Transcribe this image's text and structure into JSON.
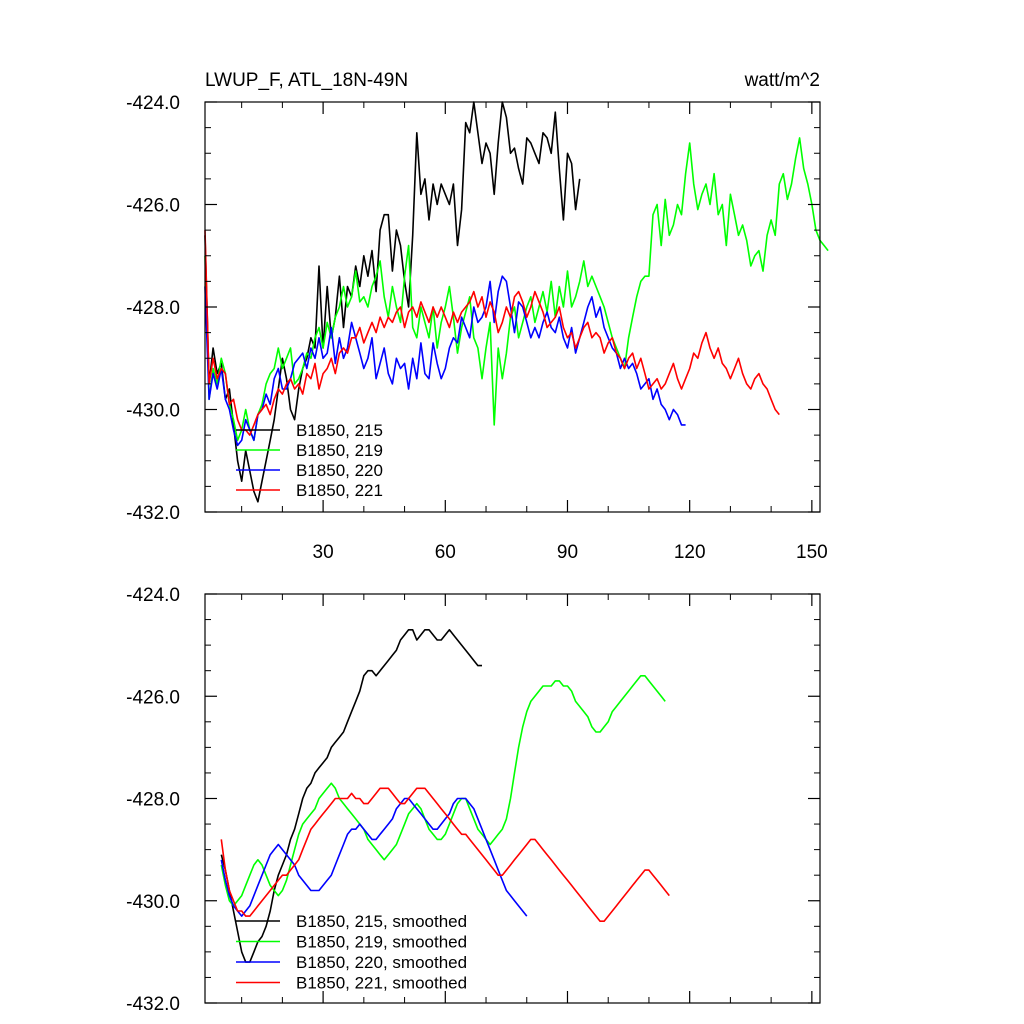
{
  "title_left": "LWUP_F, ATL_18N-49N",
  "title_right": "watt/m^2",
  "chart_data": [
    {
      "type": "line",
      "panel": "top",
      "xlim": [
        1,
        152
      ],
      "ylim": [
        -432,
        -424
      ],
      "yticks": [
        -424,
        -426,
        -428,
        -430,
        -432
      ],
      "ytick_labels": [
        "-424.0",
        "-426.0",
        "-428.0",
        "-430.0",
        "-432.0"
      ],
      "xticks": [
        30,
        60,
        90,
        120,
        150
      ],
      "xtick_labels": [
        "30",
        "60",
        "90",
        "120",
        "150"
      ],
      "legend_position": "bottom-left",
      "series": [
        {
          "name": "B1850, 215",
          "color": "#000000",
          "x_start": 1,
          "values": [
            -426.6,
            -429.5,
            -428.8,
            -429.3,
            -429.1,
            -429.8,
            -429.6,
            -430.3,
            -431.0,
            -431.4,
            -430.8,
            -431.2,
            -431.6,
            -431.8,
            -431.4,
            -431.0,
            -430.6,
            -430.2,
            -429.6,
            -429.0,
            -429.4,
            -430.0,
            -430.2,
            -429.6,
            -429.2,
            -429.0,
            -428.6,
            -428.8,
            -427.2,
            -428.8,
            -427.6,
            -428.6,
            -428.2,
            -427.4,
            -428.4,
            -427.6,
            -427.8,
            -427.2,
            -427.6,
            -427.0,
            -427.4,
            -426.9,
            -427.7,
            -426.5,
            -426.2,
            -426.2,
            -427.3,
            -426.5,
            -426.8,
            -427.5,
            -428.0,
            -426.6,
            -424.6,
            -425.8,
            -425.5,
            -426.3,
            -425.6,
            -426.0,
            -425.6,
            -425.8,
            -426.0,
            -425.6,
            -426.8,
            -426.1,
            -424.4,
            -424.6,
            -424.0,
            -424.6,
            -425.2,
            -424.8,
            -425.0,
            -425.8,
            -424.8,
            -424.0,
            -424.3,
            -425.0,
            -424.9,
            -425.3,
            -425.6,
            -424.7,
            -424.8,
            -425.0,
            -425.2,
            -424.6,
            -424.7,
            -425.0,
            -424.2,
            -425.3,
            -426.3,
            -425.0,
            -425.2,
            -426.1,
            -425.5
          ]
        },
        {
          "name": "B1850, 219",
          "color": "#00ff00",
          "x_start": 1,
          "values": [
            -427.0,
            -429.8,
            -429.2,
            -429.5,
            -429.0,
            -429.3,
            -429.9,
            -430.2,
            -430.6,
            -430.4,
            -430.0,
            -430.4,
            -430.6,
            -430.1,
            -429.9,
            -429.5,
            -429.3,
            -429.2,
            -428.8,
            -429.2,
            -429.0,
            -428.8,
            -429.5,
            -429.4,
            -429.2,
            -428.9,
            -429.0,
            -428.6,
            -428.4,
            -428.8,
            -428.3,
            -428.6,
            -428.2,
            -428.0,
            -427.6,
            -428.0,
            -427.8,
            -427.3,
            -427.9,
            -427.8,
            -428.0,
            -427.6,
            -427.4,
            -427.1,
            -427.8,
            -428.2,
            -427.6,
            -428.0,
            -428.3,
            -427.4,
            -426.8,
            -428.4,
            -428.6,
            -428.0,
            -428.3,
            -428.6,
            -428.0,
            -428.8,
            -428.3,
            -428.0,
            -427.6,
            -428.2,
            -428.9,
            -428.4,
            -428.1,
            -427.8,
            -428.6,
            -428.8,
            -429.4,
            -428.8,
            -428.3,
            -430.3,
            -428.8,
            -429.4,
            -428.9,
            -428.2,
            -428.0,
            -428.6,
            -428.3,
            -428.0,
            -427.8,
            -428.3,
            -428.0,
            -427.7,
            -428.1,
            -427.5,
            -428.2,
            -427.6,
            -428.0,
            -427.3,
            -428.0,
            -427.8,
            -427.5,
            -427.1,
            -427.6,
            -427.4,
            -427.6,
            -427.8,
            -428.0,
            -428.3,
            -428.6,
            -428.8,
            -429.0,
            -429.2,
            -428.6,
            -428.2,
            -427.8,
            -427.5,
            -427.4,
            -427.4,
            -426.2,
            -426.0,
            -426.8,
            -425.9,
            -426.6,
            -426.4,
            -426.0,
            -426.2,
            -425.4,
            -424.8,
            -425.6,
            -426.1,
            -425.8,
            -425.6,
            -426.0,
            -425.4,
            -426.2,
            -426.0,
            -426.8,
            -425.8,
            -426.2,
            -426.6,
            -426.4,
            -426.7,
            -427.2,
            -427.0,
            -426.9,
            -427.3,
            -426.6,
            -426.3,
            -426.6,
            -425.6,
            -425.4,
            -425.9,
            -425.6,
            -425.1,
            -424.7,
            -425.3,
            -425.6,
            -426.0,
            -426.5,
            -426.7,
            -426.8,
            -426.9
          ]
        },
        {
          "name": "B1850, 220",
          "color": "#0000ff",
          "x_start": 1,
          "values": [
            -427.6,
            -429.8,
            -429.3,
            -429.6,
            -429.2,
            -429.8,
            -430.0,
            -430.4,
            -430.7,
            -430.6,
            -430.2,
            -430.4,
            -430.6,
            -430.1,
            -430.0,
            -429.7,
            -429.9,
            -429.4,
            -429.2,
            -429.6,
            -429.6,
            -429.4,
            -429.1,
            -429.0,
            -428.9,
            -429.2,
            -428.8,
            -429.0,
            -428.6,
            -429.0,
            -428.9,
            -428.4,
            -429.1,
            -428.6,
            -429.0,
            -428.8,
            -428.3,
            -428.6,
            -428.9,
            -429.2,
            -429.0,
            -428.6,
            -429.4,
            -429.1,
            -428.8,
            -429.3,
            -429.5,
            -429.0,
            -429.2,
            -429.1,
            -429.6,
            -429.0,
            -429.4,
            -428.7,
            -429.3,
            -429.4,
            -428.7,
            -429.1,
            -429.4,
            -429.2,
            -428.8,
            -428.6,
            -428.7,
            -428.2,
            -428.4,
            -428.6,
            -428.0,
            -428.3,
            -428.2,
            -428.0,
            -427.5,
            -428.3,
            -427.7,
            -427.4,
            -427.5,
            -428.0,
            -428.5,
            -427.9,
            -428.0,
            -428.3,
            -428.6,
            -428.4,
            -428.6,
            -428.3,
            -428.1,
            -428.4,
            -428.5,
            -428.2,
            -428.6,
            -428.8,
            -428.4,
            -428.9,
            -428.6,
            -428.3,
            -428.0,
            -427.8,
            -428.2,
            -428.0,
            -428.4,
            -428.6,
            -428.8,
            -428.9,
            -429.2,
            -429.0,
            -429.2,
            -429.1,
            -429.3,
            -429.6,
            -429.5,
            -429.4,
            -429.8,
            -429.6,
            -429.9,
            -430.0,
            -430.2,
            -430.0,
            -430.1,
            -430.3,
            -430.3
          ]
        },
        {
          "name": "B1850, 221",
          "color": "#ff0000",
          "x_start": 1,
          "values": [
            -426.5,
            -429.5,
            -429.0,
            -429.4,
            -429.2,
            -429.3,
            -429.9,
            -429.8,
            -430.2,
            -430.4,
            -430.4,
            -430.5,
            -430.3,
            -430.1,
            -430.0,
            -429.9,
            -430.1,
            -429.8,
            -429.6,
            -429.7,
            -429.5,
            -429.4,
            -429.6,
            -429.5,
            -429.7,
            -429.3,
            -429.4,
            -429.1,
            -429.6,
            -429.3,
            -429.2,
            -429.0,
            -429.3,
            -428.9,
            -428.8,
            -428.9,
            -428.6,
            -428.6,
            -428.4,
            -428.7,
            -428.5,
            -428.3,
            -428.5,
            -428.2,
            -428.4,
            -428.2,
            -428.3,
            -428.1,
            -428.0,
            -428.4,
            -428.1,
            -428.0,
            -428.2,
            -427.9,
            -428.1,
            -428.3,
            -428.0,
            -428.2,
            -428.0,
            -428.2,
            -428.4,
            -428.1,
            -428.3,
            -428.1,
            -428.0,
            -427.9,
            -427.7,
            -428.0,
            -427.8,
            -428.2,
            -427.9,
            -428.1,
            -428.5,
            -428.3,
            -428.0,
            -428.2,
            -427.8,
            -427.7,
            -427.9,
            -428.2,
            -428.0,
            -427.7,
            -427.9,
            -428.1,
            -428.4,
            -428.3,
            -428.2,
            -428.0,
            -428.4,
            -428.6,
            -428.5,
            -428.8,
            -428.6,
            -428.4,
            -428.3,
            -428.6,
            -428.5,
            -428.6,
            -428.9,
            -428.7,
            -428.6,
            -428.9,
            -429.0,
            -429.2,
            -429.0,
            -428.9,
            -429.2,
            -429.0,
            -429.3,
            -429.6,
            -429.5,
            -429.4,
            -429.6,
            -429.5,
            -429.3,
            -429.1,
            -429.4,
            -429.6,
            -429.4,
            -429.2,
            -428.9,
            -429.0,
            -428.7,
            -428.5,
            -428.8,
            -429.0,
            -428.8,
            -429.1,
            -429.2,
            -429.4,
            -429.2,
            -429.0,
            -429.3,
            -429.5,
            -429.6,
            -429.4,
            -429.3,
            -429.5,
            -429.6,
            -429.8,
            -430.0,
            -430.1
          ]
        }
      ]
    },
    {
      "type": "line",
      "panel": "bottom",
      "xlim": [
        1,
        152
      ],
      "ylim": [
        -432,
        -424
      ],
      "yticks": [
        -424,
        -426,
        -428,
        -430,
        -432
      ],
      "ytick_labels": [
        "-424.0",
        "-426.0",
        "-428.0",
        "-430.0",
        "-432.0"
      ],
      "xticks": [
        30,
        60,
        90,
        120,
        150
      ],
      "legend_position": "bottom-left",
      "series": [
        {
          "name": "B1850, 215, smoothed",
          "color": "#000000",
          "x_start": 5,
          "values": [
            -429.1,
            -429.4,
            -429.8,
            -430.2,
            -430.6,
            -431.0,
            -431.2,
            -431.2,
            -431.0,
            -430.8,
            -430.7,
            -430.5,
            -430.2,
            -429.8,
            -429.5,
            -429.3,
            -429.1,
            -428.8,
            -428.6,
            -428.3,
            -428.0,
            -427.8,
            -427.7,
            -427.5,
            -427.4,
            -427.3,
            -427.2,
            -427.0,
            -426.9,
            -426.8,
            -426.7,
            -426.5,
            -426.3,
            -426.1,
            -425.9,
            -425.6,
            -425.5,
            -425.5,
            -425.6,
            -425.5,
            -425.4,
            -425.3,
            -425.2,
            -425.1,
            -424.9,
            -424.8,
            -424.7,
            -424.7,
            -424.9,
            -424.8,
            -424.7,
            -424.7,
            -424.8,
            -424.9,
            -424.9,
            -424.8,
            -424.7,
            -424.8,
            -424.9,
            -425.0,
            -425.1,
            -425.2,
            -425.3,
            -425.4,
            -425.4
          ]
        },
        {
          "name": "B1850, 219, smoothed",
          "color": "#00ff00",
          "x_start": 5,
          "values": [
            -429.3,
            -429.7,
            -430.0,
            -430.1,
            -430.0,
            -429.9,
            -429.7,
            -429.5,
            -429.3,
            -429.2,
            -429.3,
            -429.5,
            -429.7,
            -429.8,
            -429.9,
            -429.8,
            -429.6,
            -429.3,
            -429.0,
            -428.7,
            -428.5,
            -428.4,
            -428.3,
            -428.2,
            -428.0,
            -427.9,
            -427.8,
            -427.7,
            -427.8,
            -428.0,
            -428.1,
            -428.2,
            -428.3,
            -428.4,
            -428.5,
            -428.6,
            -428.8,
            -428.9,
            -429.0,
            -429.1,
            -429.2,
            -429.1,
            -429.0,
            -428.9,
            -428.7,
            -428.5,
            -428.3,
            -428.2,
            -428.1,
            -428.2,
            -428.4,
            -428.6,
            -428.7,
            -428.8,
            -428.8,
            -428.7,
            -428.5,
            -428.3,
            -428.1,
            -428.0,
            -428.0,
            -428.2,
            -428.4,
            -428.6,
            -428.7,
            -428.8,
            -428.9,
            -428.8,
            -428.7,
            -428.6,
            -428.4,
            -428.0,
            -427.5,
            -427.0,
            -426.6,
            -426.3,
            -426.1,
            -426.0,
            -425.9,
            -425.8,
            -425.8,
            -425.8,
            -425.7,
            -425.7,
            -425.8,
            -425.8,
            -425.9,
            -426.1,
            -426.2,
            -426.3,
            -426.4,
            -426.6,
            -426.7,
            -426.7,
            -426.6,
            -426.5,
            -426.3,
            -426.2,
            -426.1,
            -426.0,
            -425.9,
            -425.8,
            -425.7,
            -425.6,
            -425.6,
            -425.7,
            -425.8,
            -425.9,
            -426.0,
            -426.1
          ]
        },
        {
          "name": "B1850, 220, smoothed",
          "color": "#0000ff",
          "x_start": 5,
          "values": [
            -429.2,
            -429.6,
            -429.9,
            -430.1,
            -430.2,
            -430.3,
            -430.2,
            -430.1,
            -429.9,
            -429.7,
            -429.5,
            -429.3,
            -429.1,
            -429.0,
            -428.9,
            -429.0,
            -429.1,
            -429.2,
            -429.3,
            -429.5,
            -429.6,
            -429.7,
            -429.8,
            -429.8,
            -429.8,
            -429.7,
            -429.6,
            -429.5,
            -429.3,
            -429.1,
            -428.9,
            -428.7,
            -428.6,
            -428.6,
            -428.5,
            -428.6,
            -428.7,
            -428.8,
            -428.8,
            -428.7,
            -428.6,
            -428.5,
            -428.4,
            -428.2,
            -428.1,
            -428.0,
            -428.0,
            -428.1,
            -428.2,
            -428.3,
            -428.4,
            -428.5,
            -428.6,
            -428.6,
            -428.5,
            -428.4,
            -428.3,
            -428.1,
            -428.0,
            -428.0,
            -428.0,
            -428.1,
            -428.2,
            -428.4,
            -428.6,
            -428.8,
            -429.0,
            -429.2,
            -429.4,
            -429.6,
            -429.8,
            -429.9,
            -430.0,
            -430.1,
            -430.2,
            -430.3
          ]
        },
        {
          "name": "B1850, 221, smoothed",
          "color": "#ff0000",
          "x_start": 5,
          "values": [
            -428.8,
            -429.4,
            -429.8,
            -430.0,
            -430.2,
            -430.2,
            -430.3,
            -430.3,
            -430.2,
            -430.1,
            -430.0,
            -429.9,
            -429.8,
            -429.7,
            -429.6,
            -429.5,
            -429.5,
            -429.4,
            -429.3,
            -429.2,
            -429.0,
            -428.8,
            -428.6,
            -428.5,
            -428.4,
            -428.3,
            -428.2,
            -428.1,
            -428.0,
            -428.0,
            -428.0,
            -428.0,
            -427.9,
            -428.0,
            -428.0,
            -428.1,
            -428.1,
            -428.0,
            -427.9,
            -427.8,
            -427.8,
            -427.8,
            -427.9,
            -428.0,
            -428.1,
            -428.1,
            -428.0,
            -427.9,
            -427.8,
            -427.8,
            -427.8,
            -427.9,
            -428.0,
            -428.1,
            -428.2,
            -428.3,
            -428.4,
            -428.5,
            -428.6,
            -428.7,
            -428.7,
            -428.8,
            -428.9,
            -429.0,
            -429.1,
            -429.2,
            -429.3,
            -429.4,
            -429.5,
            -429.5,
            -429.4,
            -429.3,
            -429.2,
            -429.1,
            -429.0,
            -428.9,
            -428.8,
            -428.8,
            -428.9,
            -429.0,
            -429.1,
            -429.2,
            -429.3,
            -429.4,
            -429.5,
            -429.6,
            -429.7,
            -429.8,
            -429.9,
            -430.0,
            -430.1,
            -430.2,
            -430.3,
            -430.4,
            -430.4,
            -430.3,
            -430.2,
            -430.1,
            -430.0,
            -429.9,
            -429.8,
            -429.7,
            -429.6,
            -429.5,
            -429.4,
            -429.4,
            -429.5,
            -429.6,
            -429.7,
            -429.8,
            -429.9
          ]
        }
      ]
    }
  ]
}
